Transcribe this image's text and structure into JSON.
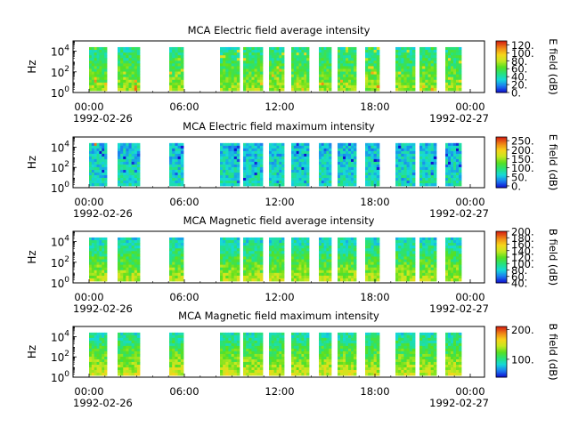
{
  "chart_data": [
    {
      "type": "heatmap",
      "title": "MCA  Electric field average intensity",
      "ylabel": "Hz",
      "yscale": "log",
      "ylim": [
        1,
        100000
      ],
      "y_ticks": [
        {
          "base": "10",
          "exp": "0"
        },
        {
          "base": "10",
          "exp": "2"
        },
        {
          "base": "10",
          "exp": "4"
        }
      ],
      "x_ticks": [
        "00:00",
        "06:00",
        "12:00",
        "18:00",
        "00:00"
      ],
      "x_start_date": "1992-02-26",
      "x_end_date": "1992-02-27",
      "colorbar_label": "E field (dB)",
      "colorbar_range": [
        0,
        130
      ],
      "colorbar_ticks": [
        "0.",
        "20.",
        "40.",
        "60.",
        "80.",
        "100.",
        "120."
      ],
      "colormap": [
        "#1010d0",
        "#1b7cf0",
        "#16d9d9",
        "#27e27a",
        "#58e020",
        "#c8e820",
        "#f7d41a",
        "#f08a16",
        "#d82a12"
      ]
    },
    {
      "type": "heatmap",
      "title": "MCA  Electric field maximum intensity",
      "ylabel": "Hz",
      "yscale": "log",
      "ylim": [
        1,
        100000
      ],
      "y_ticks": [
        {
          "base": "10",
          "exp": "0"
        },
        {
          "base": "10",
          "exp": "2"
        },
        {
          "base": "10",
          "exp": "4"
        }
      ],
      "x_ticks": [
        "00:00",
        "06:00",
        "12:00",
        "18:00",
        "00:00"
      ],
      "x_start_date": "1992-02-26",
      "x_end_date": "1992-02-27",
      "colorbar_label": "E field (dB)",
      "colorbar_range": [
        -10,
        270
      ],
      "colorbar_ticks": [
        "0.",
        "50.",
        "100.",
        "150.",
        "200.",
        "250."
      ],
      "colormap": [
        "#1010d0",
        "#1b7cf0",
        "#16d9d9",
        "#27e27a",
        "#58e020",
        "#c8e820",
        "#f7d41a",
        "#f08a16",
        "#d82a12"
      ]
    },
    {
      "type": "heatmap",
      "title": "MCA  Magnetic field average intensity",
      "ylabel": "Hz",
      "yscale": "log",
      "ylim": [
        1,
        100000
      ],
      "y_ticks": [
        {
          "base": "10",
          "exp": "0"
        },
        {
          "base": "10",
          "exp": "2"
        },
        {
          "base": "10",
          "exp": "4"
        }
      ],
      "x_ticks": [
        "00:00",
        "06:00",
        "12:00",
        "18:00",
        "00:00"
      ],
      "x_start_date": "1992-02-26",
      "x_end_date": "1992-02-27",
      "colorbar_label": "B field (dB)",
      "colorbar_range": [
        40,
        200
      ],
      "colorbar_ticks": [
        "40.",
        "60.",
        "80.",
        "100.",
        "120.",
        "140.",
        "160.",
        "180.",
        "200."
      ],
      "colormap": [
        "#1010d0",
        "#1b7cf0",
        "#16d9d9",
        "#27e27a",
        "#58e020",
        "#c8e820",
        "#f7d41a",
        "#f08a16",
        "#d82a12"
      ]
    },
    {
      "type": "heatmap",
      "title": "MCA  Magnetic field maximum intensity",
      "ylabel": "Hz",
      "yscale": "log",
      "ylim": [
        1,
        100000
      ],
      "y_ticks": [
        {
          "base": "10",
          "exp": "0"
        },
        {
          "base": "10",
          "exp": "2"
        },
        {
          "base": "10",
          "exp": "4"
        }
      ],
      "x_ticks": [
        "00:00",
        "06:00",
        "12:00",
        "18:00",
        "00:00"
      ],
      "x_start_date": "1992-02-26",
      "x_end_date": "1992-02-27",
      "colorbar_label": "B field (dB)",
      "colorbar_range": [
        40,
        210
      ],
      "colorbar_ticks": [
        "100.",
        "200."
      ],
      "colormap": [
        "#1010d0",
        "#1b7cf0",
        "#16d9d9",
        "#27e27a",
        "#58e020",
        "#c8e820",
        "#f7d41a",
        "#f08a16",
        "#d82a12"
      ]
    }
  ]
}
